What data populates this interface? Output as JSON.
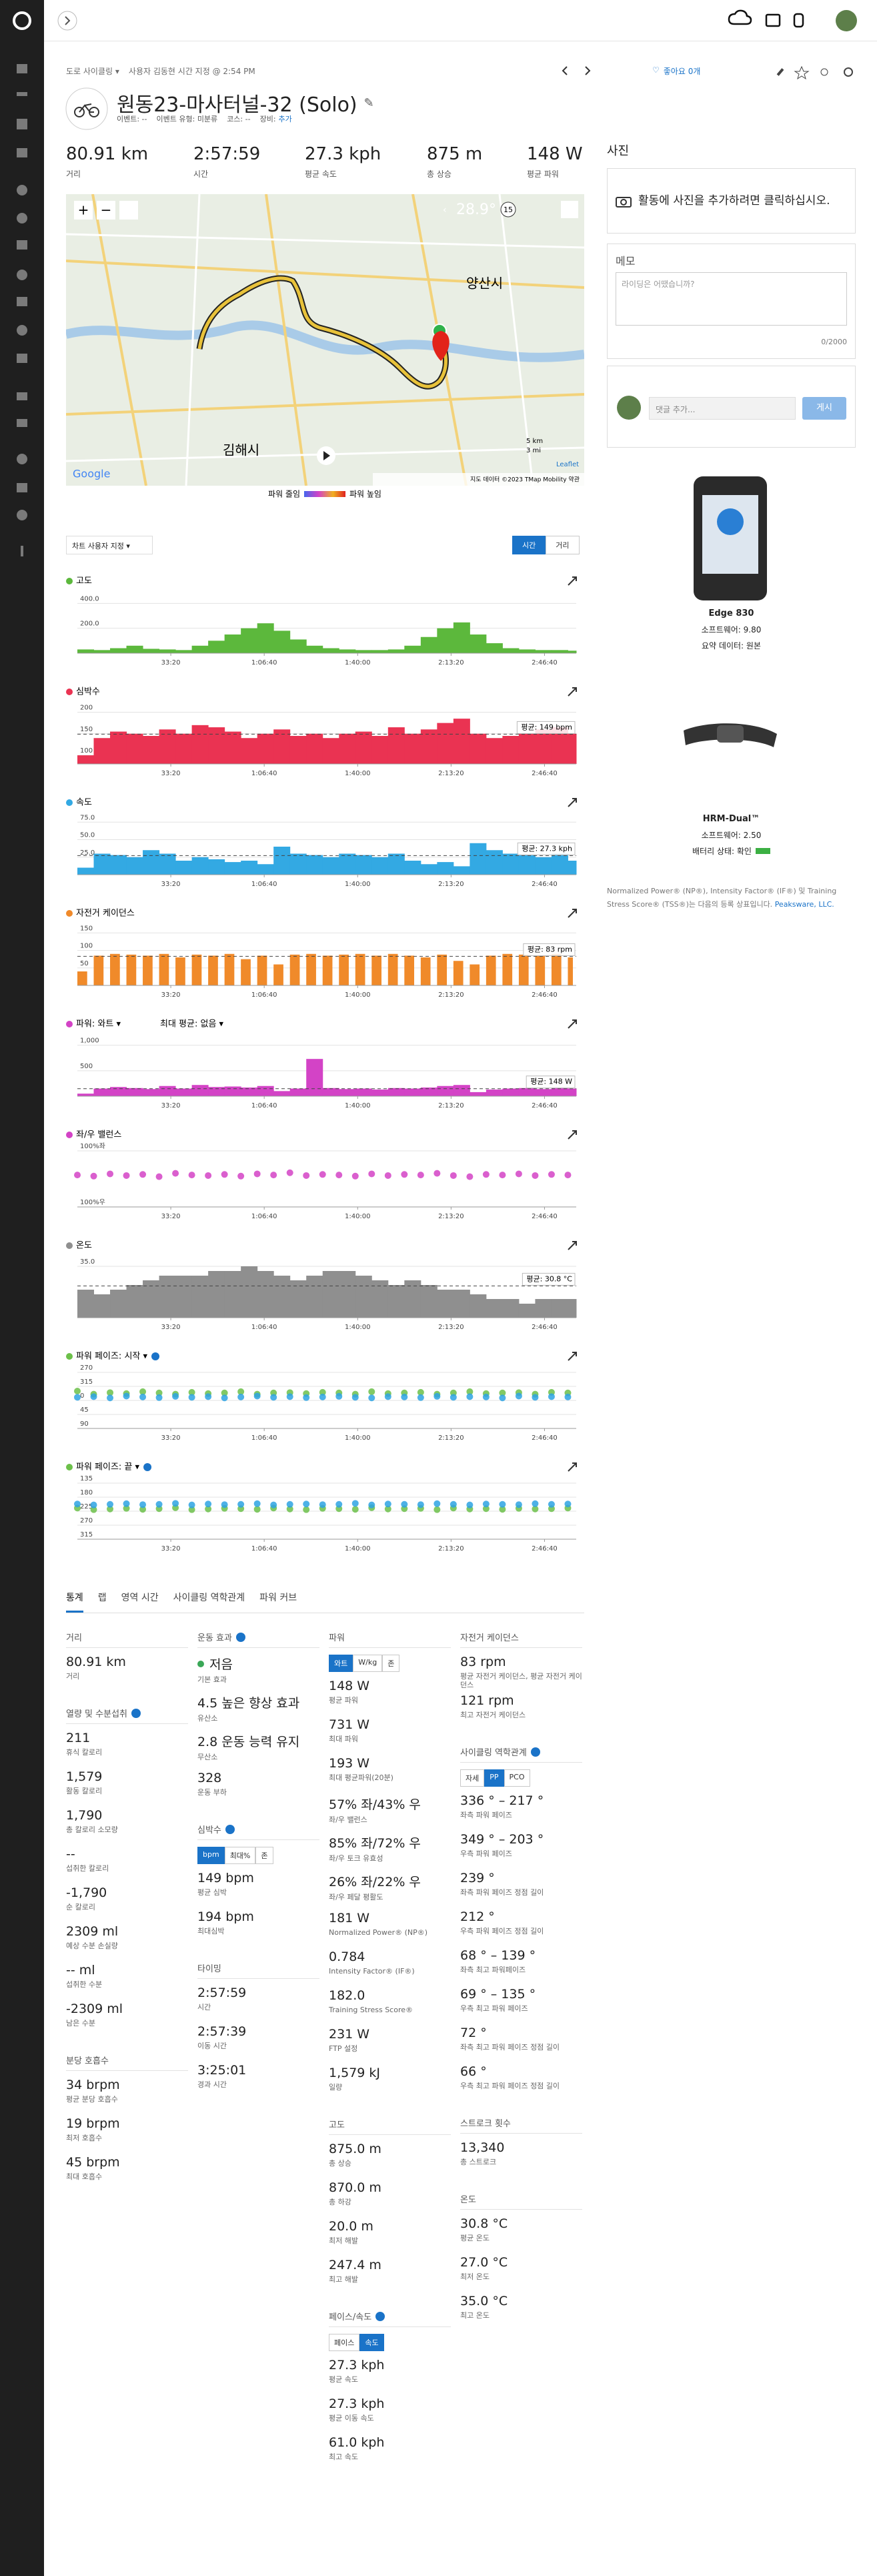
{
  "nav": {
    "breadcrumb_type": "도로 사이클링 ▾",
    "breadcrumb_user": "사용자 김동현 시간 지정 @ 2:54 PM",
    "likes": "좋아요 0개"
  },
  "header": {
    "title": "원동23-마사터널-32 (Solo)",
    "meta": [
      "이벤트: --",
      "이벤트 유형: 미분류",
      "코스: --",
      "장비:"
    ],
    "gear_link": "추가"
  },
  "summary": [
    {
      "value": "80.91 km",
      "label": "거리"
    },
    {
      "value": "2:57:59",
      "label": "시간"
    },
    {
      "value": "27.3 kph",
      "label": "평균 속도"
    },
    {
      "value": "875 m",
      "label": "총 상승"
    },
    {
      "value": "148 W",
      "label": "평균 파워"
    }
  ],
  "map": {
    "temperature": "28.9°",
    "wind": "15",
    "places": [
      "양산시",
      "김해시"
    ],
    "google": "Google",
    "scale_km": "5 km",
    "scale_mi": "3 mi",
    "leaflet": "Leaflet",
    "attribution": "지도 데이터 ©2023 TMap Mobility   약관",
    "legend_low": "파워 줄임",
    "legend_high": "파워 높임"
  },
  "chart_controls": {
    "customize": "차트 사용자 지정 ▾",
    "toggle": [
      "시간",
      "거리"
    ],
    "active": 0
  },
  "charts": {
    "x": [
      0,
      350,
      700,
      1050,
      1400,
      1750,
      2100,
      2450,
      2800,
      3150,
      3500,
      3850,
      4200,
      4550,
      4900,
      5250,
      5600,
      5950,
      6300,
      6650,
      7000,
      7350,
      7700,
      8050,
      8400,
      8750,
      9100,
      9450,
      9800,
      10150,
      10500
    ],
    "xlim": [
      0,
      10679
    ],
    "xticks": [
      {
        "value": 2000,
        "label": "33:20"
      },
      {
        "value": 4000,
        "label": "1:06:40"
      },
      {
        "value": 6000,
        "label": "1:40:00"
      },
      {
        "value": 8000,
        "label": "2:13:20"
      },
      {
        "value": 10000,
        "label": "2:46:40"
      }
    ],
    "panels": [
      {
        "title": "고도",
        "type": "area",
        "color": "#5cb83c",
        "ylim": [
          0,
          450
        ],
        "yticks": [
          {
            "value": 400,
            "label": "400.0"
          },
          {
            "value": 200,
            "label": "200.0"
          }
        ],
        "values": [
          30,
          25,
          40,
          60,
          35,
          30,
          25,
          60,
          100,
          150,
          200,
          240,
          180,
          110,
          60,
          40,
          30,
          25,
          25,
          30,
          60,
          130,
          200,
          247,
          150,
          80,
          40,
          30,
          25,
          25,
          20
        ]
      },
      {
        "title": "심박수",
        "type": "area",
        "color": "#ea3352",
        "ylim": [
          80,
          210
        ],
        "yticks": [
          200,
          150,
          100
        ],
        "average": 149,
        "average_label": "평균: 149 bpm",
        "values": [
          100,
          140,
          155,
          150,
          145,
          160,
          150,
          170,
          165,
          155,
          140,
          150,
          160,
          145,
          150,
          140,
          150,
          155,
          145,
          165,
          150,
          160,
          175,
          185,
          150,
          140,
          145,
          150,
          160,
          165,
          150
        ]
      },
      {
        "title": "속도",
        "type": "area",
        "color": "#33a9e3",
        "ylim": [
          0,
          80
        ],
        "yticks": [
          {
            "value": 75,
            "label": "75.0"
          },
          {
            "value": 50,
            "label": "50.0"
          },
          {
            "value": 25,
            "label": "25.0"
          }
        ],
        "average": 27.3,
        "average_label": "평균: 27.3 kph",
        "values": [
          10,
          30,
          28,
          25,
          35,
          30,
          20,
          25,
          22,
          18,
          20,
          15,
          40,
          30,
          28,
          25,
          30,
          28,
          25,
          30,
          20,
          15,
          18,
          12,
          45,
          35,
          30,
          28,
          25,
          30,
          20
        ]
      },
      {
        "title": "자전거 케이던스",
        "type": "bar",
        "color": "#f08a2a",
        "ylim": [
          0,
          160
        ],
        "yticks": [
          150,
          100,
          50
        ],
        "average": 83,
        "average_label": "평균: 83 rpm",
        "values": [
          40,
          85,
          90,
          88,
          85,
          90,
          80,
          88,
          85,
          90,
          75,
          85,
          60,
          88,
          90,
          85,
          88,
          90,
          85,
          90,
          85,
          80,
          88,
          70,
          60,
          85,
          90,
          88,
          85,
          90,
          80
        ]
      },
      {
        "title": "파워: 와트 ▾",
        "extra": "최대 평균: 없음 ▾",
        "type": "area",
        "color": "#d343c6",
        "ylim": [
          0,
          1100
        ],
        "yticks": [
          {
            "value": 1000,
            "label": "1,000"
          },
          500
        ],
        "average": 148,
        "average_label": "평균: 148 W",
        "values": [
          50,
          150,
          180,
          160,
          140,
          200,
          150,
          220,
          180,
          190,
          170,
          200,
          100,
          150,
          731,
          160,
          140,
          150,
          130,
          160,
          150,
          170,
          200,
          220,
          80,
          130,
          150,
          160,
          140,
          170,
          150
        ]
      },
      {
        "title": "좌/우 밸런스",
        "type": "scatter",
        "color": "#d343c6",
        "ylim": [
          -100,
          100
        ],
        "yticks": [
          {
            "value": 100,
            "label": "100%좌"
          },
          {
            "value": -100,
            "label": "100%우"
          }
        ],
        "values": [
          14,
          10,
          18,
          12,
          16,
          8,
          20,
          14,
          12,
          16,
          10,
          18,
          14,
          22,
          12,
          16,
          14,
          10,
          18,
          12,
          16,
          14,
          20,
          12,
          8,
          16,
          14,
          18,
          12,
          16,
          14
        ]
      },
      {
        "title": "온도",
        "type": "area",
        "color": "#8f8f8f",
        "ylim": [
          24,
          36
        ],
        "yticks": [
          {
            "value": 35,
            "label": "35.0"
          }
        ],
        "average": 30.8,
        "average_label": "평균: 30.8 °C",
        "values": [
          30,
          29,
          30,
          31,
          32,
          33,
          33,
          33,
          34,
          34,
          35,
          34,
          33,
          32,
          33,
          34,
          34,
          33,
          32,
          31,
          32,
          31,
          30,
          30,
          29,
          28,
          28,
          27,
          28,
          28,
          28
        ]
      },
      {
        "title": "파워 페이즈: 시작 ▾",
        "help": true,
        "type": "scatter",
        "inverted": true,
        "ylim": [
          270,
          450
        ],
        "yticks": [
          270,
          315,
          {
            "value": 360,
            "label": "0"
          },
          {
            "value": 405,
            "label": "45"
          },
          {
            "value": 450,
            "label": "90"
          }
        ],
        "series": [
          {
            "color": "#6cc04a",
            "values": [
              330,
              340,
              335,
              338,
              332,
              336,
              340,
              334,
              338,
              336,
              332,
              340,
              336,
              335,
              338,
              334,
              336,
              340,
              332,
              338,
              336,
              334,
              340,
              336,
              332,
              338,
              336,
              335,
              340,
              334,
              336
            ]
          },
          {
            "color": "#2ea3e3",
            "values": [
              350,
              348,
              352,
              346,
              349,
              351,
              347,
              350,
              348,
              352,
              349,
              346,
              350,
              348,
              351,
              349,
              347,
              350,
              352,
              348,
              349,
              351,
              347,
              350,
              348,
              349,
              352,
              346,
              350,
              348,
              349
            ]
          }
        ]
      },
      {
        "title": "파워 페이즈: 끝 ▾",
        "help": true,
        "type": "scatter",
        "inverted": true,
        "ylim": [
          135,
          315
        ],
        "yticks": [
          135,
          180,
          225,
          270,
          315
        ],
        "series": [
          {
            "color": "#6cc04a",
            "values": [
              215,
              220,
              218,
              216,
              219,
              217,
              214,
              220,
              218,
              216,
              217,
              219,
              215,
              218,
              220,
              216,
              217,
              219,
              214,
              218,
              217,
              216,
              220,
              215,
              218,
              217,
              219,
              216,
              218,
              217,
              215
            ]
          },
          {
            "color": "#2ea3e3",
            "values": [
              202,
              205,
              203,
              201,
              204,
              203,
              200,
              205,
              202,
              204,
              203,
              201,
              205,
              203,
              202,
              204,
              203,
              200,
              205,
              202,
              203,
              204,
              201,
              203,
              205,
              202,
              203,
              204,
              201,
              203,
              202
            ]
          }
        ]
      }
    ]
  },
  "stats": {
    "tabs": [
      "통계",
      "랩",
      "영역 시간",
      "사이클링 역학관계",
      "파워 커브"
    ],
    "active_tab": 0,
    "columns": [
      [
        {
          "title": "거리",
          "items": [
            {
              "value": "80.91 km",
              "label": "거리"
            }
          ]
        },
        {
          "title": "열량 및 수분섭취",
          "help": true,
          "items": [
            {
              "value": "211",
              "label": "휴식 칼로리"
            },
            {
              "value": "1,579",
              "label": "활동 칼로리"
            },
            {
              "value": "1,790",
              "label": "총 칼로리 소모량"
            },
            {
              "value": "--",
              "label": "섭취한 칼로리"
            },
            {
              "value": "-1,790",
              "label": "순 칼로리"
            },
            {
              "value": "2309 ml",
              "label": "예상 수분 손실량"
            },
            {
              "value": "-- ml",
              "label": "섭취한 수분"
            },
            {
              "value": "-2309 ml",
              "label": "남은 수분"
            }
          ]
        },
        {
          "title": "분당 호흡수",
          "items": [
            {
              "value": "34 brpm",
              "label": "평균 분당 호흡수"
            },
            {
              "value": "19 brpm",
              "label": "최저 호흡수"
            },
            {
              "value": "45 brpm",
              "label": "최대 호흡수"
            }
          ]
        }
      ],
      [
        {
          "title": "운동 효과",
          "help": true,
          "items": [
            {
              "value": "저음",
              "label": "기본 효과",
              "dot": "#3aa757"
            },
            {
              "value": "4.5 높은 향상 효과",
              "label": "유산소"
            },
            {
              "value": "2.8 운동 능력 유지",
              "label": "무산소"
            },
            {
              "value": "328",
              "label": "운동 부하"
            }
          ]
        },
        {
          "title": "심박수",
          "help": true,
          "toggle": [
            "bpm",
            "최대%",
            "존"
          ],
          "active": 0,
          "items": [
            {
              "value": "149 bpm",
              "label": "평균 심박"
            },
            {
              "value": "194 bpm",
              "label": "최대심박"
            }
          ]
        },
        {
          "title": "타이밍",
          "items": [
            {
              "value": "2:57:59",
              "label": "시간"
            },
            {
              "value": "2:57:39",
              "label": "이동 시간"
            },
            {
              "value": "3:25:01",
              "label": "경과 시간"
            }
          ]
        }
      ],
      [
        {
          "title": "파워",
          "toggle": [
            "와트",
            "W/kg",
            "존"
          ],
          "active": 0,
          "items": [
            {
              "value": "148 W",
              "label": "평균 파워"
            },
            {
              "value": "731 W",
              "label": "최대 파워"
            },
            {
              "value": "193 W",
              "label": "최대 평균파워(20분)"
            },
            {
              "value": "57% 좌/43% 우",
              "label": "좌/우 밸런스"
            },
            {
              "value": "85% 좌/72% 우",
              "label": "좌/우 토크 유효성"
            },
            {
              "value": "26% 좌/22% 우",
              "label": "좌/우 페달 평활도"
            },
            {
              "value": "181 W",
              "label": "Normalized Power® (NP®)"
            },
            {
              "value": "0.784",
              "label": "Intensity Factor® (IF®)"
            },
            {
              "value": "182.0",
              "label": "Training Stress Score®"
            },
            {
              "value": "231 W",
              "label": "FTP 설정"
            },
            {
              "value": "1,579 kJ",
              "label": "일량"
            }
          ]
        },
        {
          "title": "고도",
          "items": [
            {
              "value": "875.0 m",
              "label": "총 상승"
            },
            {
              "value": "870.0 m",
              "label": "총 하강"
            },
            {
              "value": "20.0 m",
              "label": "최저 해발"
            },
            {
              "value": "247.4 m",
              "label": "최고 해발"
            }
          ]
        },
        {
          "title": "페이스/속도",
          "help": true,
          "toggle": [
            "페이스",
            "속도"
          ],
          "active": 1,
          "items": [
            {
              "value": "27.3 kph",
              "label": "평균 속도"
            },
            {
              "value": "27.3 kph",
              "label": "평균 이동 속도"
            },
            {
              "value": "61.0 kph",
              "label": "최고 속도"
            }
          ]
        }
      ],
      [
        {
          "title": "자전거 케이던스",
          "items": [
            {
              "value": "83 rpm",
              "label": "평균 자전거 케이던스, 평균 자전거 케이던스"
            },
            {
              "value": "121 rpm",
              "label": "최고 자전거 케이던스"
            }
          ]
        },
        {
          "title": "사이클링 역학관계",
          "help": true,
          "toggle": [
            "자세",
            "PP",
            "PCO"
          ],
          "active": 1,
          "items": [
            {
              "value": "336 ° – 217 °",
              "label": "좌측 파워 페이즈"
            },
            {
              "value": "349 ° – 203 °",
              "label": "우측 파워 페이즈"
            },
            {
              "value": "239 °",
              "label": "좌측 파워 페이즈 정점 길이"
            },
            {
              "value": "212 °",
              "label": "우측 파워 페이즈 정점 길이"
            },
            {
              "value": "68 ° – 139 °",
              "label": "좌측 최고 파워페이즈"
            },
            {
              "value": "69 ° – 135 °",
              "label": "우측 최고 파워 페이즈"
            },
            {
              "value": "72 °",
              "label": "좌측 최고 파워 페이즈 정점 길이"
            },
            {
              "value": "66 °",
              "label": "우측 최고 파워 페이즈 정점 길이"
            }
          ]
        },
        {
          "title": "스트로크 횟수",
          "items": [
            {
              "value": "13,340",
              "label": "총 스트로크"
            }
          ]
        },
        {
          "title": "온도",
          "items": [
            {
              "value": "30.8 °C",
              "label": "평균 온도"
            },
            {
              "value": "27.0 °C",
              "label": "최저 온도"
            },
            {
              "value": "35.0 °C",
              "label": "최고 온도"
            }
          ]
        }
      ]
    ]
  },
  "sidebar": {
    "photos_title": "사진",
    "photos_prompt": "활동에 사진을 추가하려면 클릭하십시오.",
    "notes_title": "메모",
    "notes_placeholder": "라이딩은 어땠습니까?",
    "notes_count": "0/2000",
    "comment_placeholder": "댓글 추가...",
    "comment_button": "게시",
    "devices": [
      {
        "name": "Edge 830",
        "lines": [
          "소프트웨어: 9.80",
          "요약 데이터: 원본"
        ]
      },
      {
        "name": "HRM-Dual™",
        "lines": [
          "소프트웨어: 2.50",
          "배터리 상태: 확인"
        ]
      }
    ],
    "trademark": "Normalized Power® (NP®), Intensity Factor® (IF®) 및 Training Stress Score® (TSS®)는 다음의 등록 상표입니다.",
    "trademark_link": "Peaksware, LLC."
  }
}
